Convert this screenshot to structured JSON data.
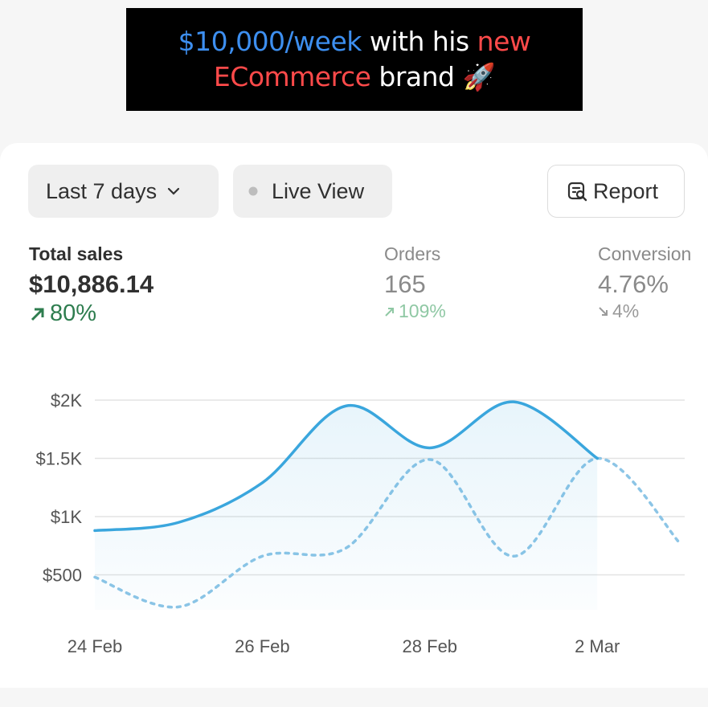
{
  "banner": {
    "line1": {
      "a": "$10,000/week",
      "b": "with his",
      "c": "new"
    },
    "line2": {
      "a": "ECommerce",
      "b": "brand 🚀"
    }
  },
  "controls": {
    "range": "Last 7 days",
    "live": "Live View",
    "report": "Report"
  },
  "metrics": [
    {
      "label": "Total sales",
      "value": "$10,886.14",
      "change": "80%"
    },
    {
      "label": "Orders",
      "value": "165",
      "change": "109%"
    },
    {
      "label": "Conversion",
      "value": "4.76%",
      "change": "4%"
    }
  ],
  "chart_data": {
    "type": "line",
    "categories": [
      "24 Feb",
      null,
      "26 Feb",
      null,
      "28 Feb",
      null,
      "2 Mar",
      null
    ],
    "series": [
      {
        "color": "#3aa6dd",
        "dashed": false,
        "fill": true,
        "values": [
          880,
          950,
          1290,
          1950,
          1590,
          1985,
          1500,
          null
        ]
      },
      {
        "color": "#8cc5e6",
        "dashed": true,
        "fill": false,
        "values": [
          480,
          225,
          660,
          730,
          1490,
          660,
          1500,
          760
        ]
      }
    ],
    "ylim": [
      200,
      2100
    ],
    "yticks": [
      {
        "value": 500,
        "label": "$500"
      },
      {
        "value": 1000,
        "label": "$1K"
      },
      {
        "value": 1500,
        "label": "$1.5K"
      },
      {
        "value": 2000,
        "label": "$2K"
      }
    ],
    "grid": true
  }
}
